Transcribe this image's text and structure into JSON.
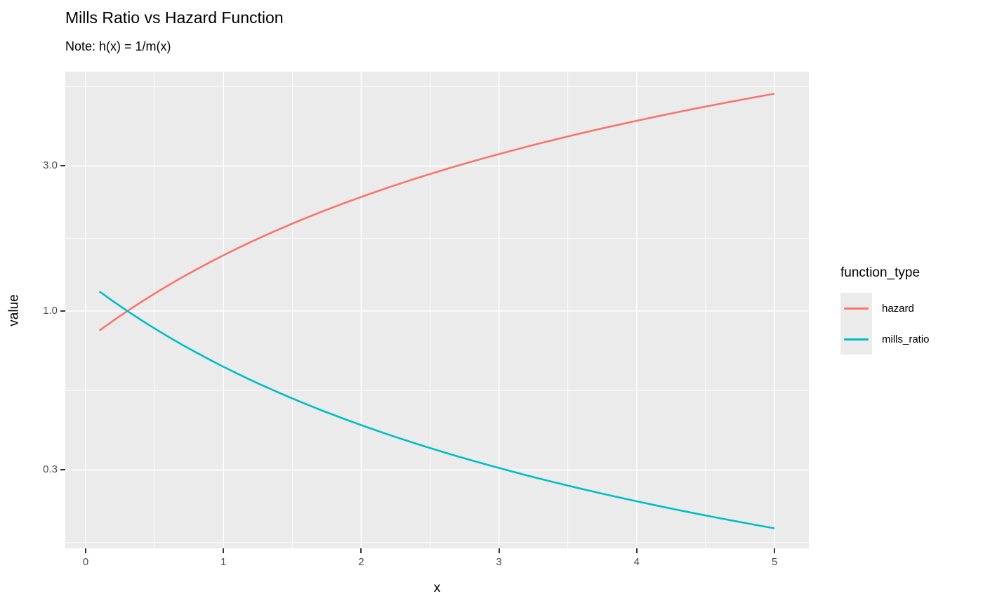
{
  "chart_data": {
    "type": "line",
    "title": "Mills Ratio vs Hazard Function",
    "subtitle": "Note: h(x) = 1/m(x)",
    "xlabel": "x",
    "ylabel": "value",
    "legend_title": "function_type",
    "legend_position": "right",
    "grid": true,
    "panel_bg": "#EBEBEB",
    "grid_color": "#FFFFFF",
    "tick_text_color": "#4D4D4D",
    "y_scale": "log10",
    "xlim": [
      -0.148,
      5.25
    ],
    "ylim": [
      0.166,
      6.13
    ],
    "x_ticks": [
      0,
      1,
      2,
      3,
      4,
      5
    ],
    "x_tick_labels": [
      "0",
      "1",
      "2",
      "3",
      "4",
      "5"
    ],
    "x_minor_breaks": [
      0.5,
      1.5,
      2.5,
      3.5,
      4.5
    ],
    "y_ticks": [
      0.3,
      1.0,
      3.0
    ],
    "y_tick_labels": [
      "0.3",
      "1.0",
      "3.0"
    ],
    "y_minor_breaks": [
      0.173,
      0.548,
      1.732,
      5.477
    ],
    "x": [
      0.1,
      0.2,
      0.3,
      0.4,
      0.5,
      0.6,
      0.7,
      0.8,
      0.9,
      1.0,
      1.1,
      1.2,
      1.3,
      1.4,
      1.5,
      1.6,
      1.7,
      1.8,
      1.9,
      2.0,
      2.1,
      2.2,
      2.3,
      2.4,
      2.5,
      2.6,
      2.7,
      2.8,
      2.9,
      3.0,
      3.1,
      3.2,
      3.3,
      3.4,
      3.5,
      3.6,
      3.7,
      3.8,
      3.9,
      4.0,
      4.1,
      4.2,
      4.3,
      4.4,
      4.5,
      4.6,
      4.7,
      4.8,
      4.9,
      5.0
    ],
    "series": [
      {
        "name": "hazard",
        "color": "#F8766D",
        "values": [
          0.8626,
          0.9294,
          0.9982,
          1.0688,
          1.1411,
          1.215,
          1.2905,
          1.3674,
          1.4457,
          1.5251,
          1.6058,
          1.6876,
          1.7703,
          1.854,
          1.9386,
          2.0239,
          2.1104,
          2.1973,
          2.2849,
          2.3732,
          2.4621,
          2.5516,
          2.6415,
          2.7318,
          2.8226,
          2.9142,
          3.0058,
          3.0979,
          3.1901,
          3.283,
          3.3762,
          3.4696,
          3.5633,
          3.6572,
          3.7514,
          3.8458,
          3.9405,
          4.0354,
          4.1306,
          4.2256,
          4.321,
          4.4166,
          4.5124,
          4.6082,
          4.7043,
          4.8005,
          4.8968,
          4.9933,
          5.0899,
          5.1865
        ]
      },
      {
        "name": "mills_ratio",
        "color": "#00BFC4",
        "values": [
          1.1593,
          1.0759,
          1.0018,
          0.9357,
          0.8764,
          0.823,
          0.7749,
          0.7313,
          0.6917,
          0.6557,
          0.6227,
          0.5926,
          0.5649,
          0.5394,
          0.5158,
          0.4941,
          0.4738,
          0.4551,
          0.4376,
          0.4214,
          0.4062,
          0.3919,
          0.3786,
          0.3661,
          0.3543,
          0.3432,
          0.3327,
          0.3228,
          0.3135,
          0.3046,
          0.2962,
          0.2882,
          0.2806,
          0.2734,
          0.2666,
          0.26,
          0.2538,
          0.2478,
          0.2421,
          0.2367,
          0.2314,
          0.2264,
          0.2216,
          0.217,
          0.2126,
          0.2083,
          0.2042,
          0.2003,
          0.1965,
          0.1928
        ]
      }
    ]
  }
}
